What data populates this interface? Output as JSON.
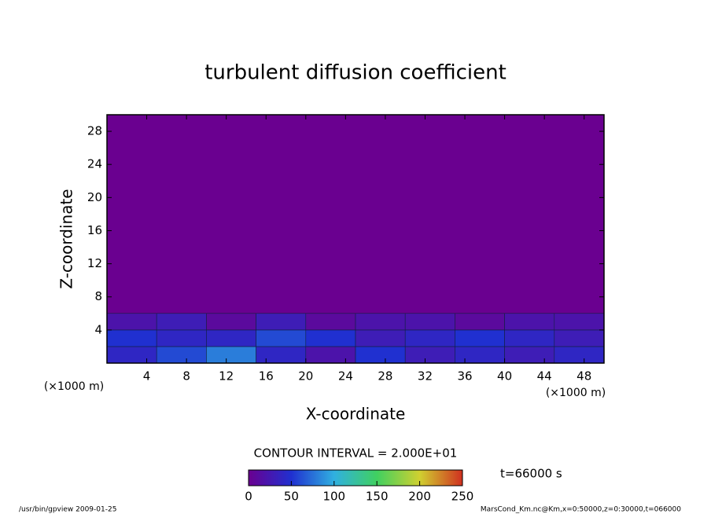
{
  "chart_data": {
    "type": "contour",
    "title": "turbulent diffusion coefficient",
    "xlabel": "X-coordinate",
    "ylabel": "Z-coordinate",
    "xunit": "(×1000 m)",
    "yunit": "(×1000 m)",
    "xlim": [
      0,
      50
    ],
    "xticks": [
      4,
      8,
      12,
      16,
      20,
      24,
      28,
      32,
      36,
      40,
      44,
      48
    ],
    "ylim": [
      0,
      30
    ],
    "yticks": [
      4,
      8,
      12,
      16,
      20,
      24,
      28
    ],
    "x": [
      2.5,
      7.5,
      12.5,
      17.5,
      22.5,
      27.5,
      32.5,
      37.5,
      42.5,
      47.5
    ],
    "z": [
      1,
      3,
      5
    ],
    "values": [
      [
        40,
        60,
        80,
        40,
        20,
        50,
        30,
        40,
        30,
        40
      ],
      [
        50,
        40,
        40,
        60,
        50,
        30,
        40,
        50,
        40,
        30
      ],
      [
        20,
        30,
        10,
        30,
        10,
        20,
        20,
        10,
        20,
        20
      ]
    ],
    "background_value": 0,
    "contour_interval": "CONTOUR INTERVAL = 2.000E+01",
    "clim": [
      0,
      250
    ],
    "colorbar_ticks": [
      0,
      50,
      100,
      150,
      200,
      250
    ],
    "time_label": "t=66000 s",
    "footer_left": "/usr/bin/gpview  2009-01-25",
    "footer_right": "MarsCond_Km.nc@Km,x=0:50000,z=0:30000,t=066000"
  }
}
